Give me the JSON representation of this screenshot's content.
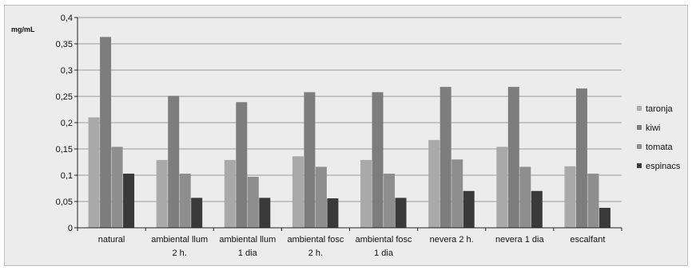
{
  "chart_data": {
    "type": "bar",
    "ylabel": "mg/mL",
    "ylim": [
      0,
      0.4
    ],
    "yticks": [
      "0",
      "0,05",
      "0,1",
      "0,15",
      "0,2",
      "0,25",
      "0,3",
      "0,35",
      "0,4"
    ],
    "categories": [
      [
        "natural"
      ],
      [
        "ambiental llum",
        "2 h."
      ],
      [
        "ambiental llum",
        "1 dia"
      ],
      [
        "ambiental fosc",
        "2 h."
      ],
      [
        "ambiental fosc",
        "1 dia"
      ],
      [
        "nevera 2 h."
      ],
      [
        "nevera 1 dia"
      ],
      [
        "escalfant"
      ]
    ],
    "series": [
      {
        "name": "taronja",
        "color": "#a9a9a9",
        "values": [
          0.21,
          0.129,
          0.129,
          0.136,
          0.129,
          0.167,
          0.154,
          0.117
        ]
      },
      {
        "name": "kiwi",
        "color": "#7d7d7d",
        "values": [
          0.363,
          0.251,
          0.239,
          0.258,
          0.258,
          0.268,
          0.268,
          0.265
        ]
      },
      {
        "name": "tomata",
        "color": "#8e8e8e",
        "values": [
          0.154,
          0.103,
          0.097,
          0.116,
          0.103,
          0.13,
          0.116,
          0.103
        ]
      },
      {
        "name": "espinacs",
        "color": "#3a3a3a",
        "values": [
          0.103,
          0.057,
          0.057,
          0.056,
          0.057,
          0.07,
          0.07,
          0.038
        ]
      }
    ],
    "grid": true,
    "legend": "right"
  }
}
